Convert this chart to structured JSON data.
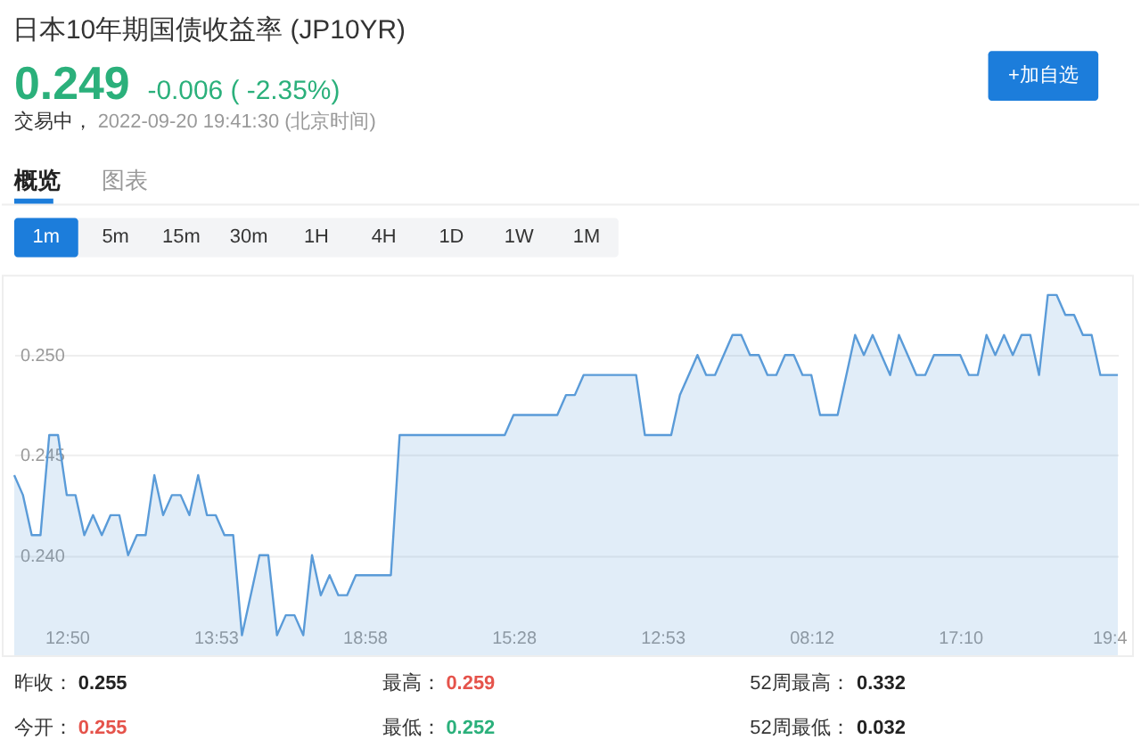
{
  "chart_data": {
    "type": "area",
    "title": "日本10年期国债收益率 (JP10YR)",
    "annotations": [
      "0.249",
      "-0.006 ( -2.35%)",
      "交易中，",
      "2022-09-20 19:41:30 (北京时间)",
      "+加自选",
      "概览",
      "图表",
      "1m",
      "5m",
      "15m",
      "30m",
      "1H",
      "4H",
      "1D",
      "1W",
      "1M",
      "昨收：",
      "0.255",
      "最高：",
      "0.259",
      "52周最高：",
      "0.332",
      "今开：",
      "0.255",
      "最低：",
      "0.252",
      "52周最低：",
      "0.032"
    ],
    "categories": [
      null,
      null,
      null,
      null,
      null,
      null,
      "12:50",
      null,
      null,
      null,
      null,
      null,
      null,
      null,
      null,
      null,
      null,
      null,
      null,
      null,
      null,
      null,
      null,
      "13:53",
      null,
      null,
      null,
      null,
      null,
      null,
      null,
      null,
      null,
      null,
      null,
      null,
      null,
      null,
      null,
      null,
      "18:58",
      null,
      null,
      null,
      null,
      null,
      null,
      null,
      null,
      null,
      null,
      null,
      null,
      null,
      null,
      null,
      null,
      "15:28",
      null,
      null,
      null,
      null,
      null,
      null,
      null,
      null,
      null,
      null,
      null,
      null,
      null,
      null,
      null,
      null,
      "12:53",
      null,
      null,
      null,
      null,
      null,
      null,
      null,
      null,
      null,
      null,
      null,
      null,
      null,
      null,
      null,
      null,
      "08:12",
      null,
      null,
      null,
      null,
      null,
      null,
      null,
      null,
      null,
      null,
      null,
      null,
      null,
      null,
      null,
      null,
      "17:10",
      null,
      null,
      null,
      null,
      null,
      null,
      null,
      null,
      null,
      null,
      null,
      null,
      null,
      null,
      null,
      null,
      "19:4",
      null
    ],
    "series": [
      {
        "color": "#5a9bd8",
        "values": [
          0.244,
          0.243,
          0.241,
          0.241,
          0.246,
          0.246,
          0.243,
          0.243,
          0.241,
          0.242,
          0.241,
          0.242,
          0.242,
          0.24,
          0.241,
          0.241,
          0.244,
          0.242,
          0.243,
          0.243,
          0.242,
          0.244,
          0.242,
          0.242,
          0.241,
          0.241,
          0.236,
          0.238,
          0.24,
          0.24,
          0.236,
          0.237,
          0.237,
          0.236,
          0.24,
          0.238,
          0.239,
          0.238,
          0.238,
          0.239,
          0.239,
          0.239,
          0.239,
          0.239,
          0.246,
          0.246,
          0.246,
          0.246,
          0.246,
          0.246,
          0.246,
          0.246,
          0.246,
          0.246,
          0.246,
          0.246,
          0.246,
          0.247,
          0.247,
          0.247,
          0.247,
          0.247,
          0.247,
          0.248,
          0.248,
          0.249,
          0.249,
          0.249,
          0.249,
          0.249,
          0.249,
          0.249,
          0.246,
          0.246,
          0.246,
          0.246,
          0.248,
          0.249,
          0.25,
          0.249,
          0.249,
          0.25,
          0.251,
          0.251,
          0.25,
          0.25,
          0.249,
          0.249,
          0.25,
          0.25,
          0.249,
          0.249,
          0.247,
          0.247,
          0.247,
          0.249,
          0.251,
          0.25,
          0.251,
          0.25,
          0.249,
          0.251,
          0.25,
          0.249,
          0.249,
          0.25,
          0.25,
          0.25,
          0.25,
          0.249,
          0.249,
          0.251,
          0.25,
          0.251,
          0.25,
          0.251,
          0.251,
          0.249,
          0.253,
          0.253,
          0.252,
          0.252,
          0.251,
          0.251,
          0.249,
          0.249,
          0.249
        ]
      }
    ],
    "ylim": [
      0.235,
      0.254
    ],
    "yticks": [
      {
        "value": 0.24,
        "label": "0.240"
      },
      0.245,
      {
        "value": 0.25,
        "label": "0.250"
      }
    ],
    "grid": "y"
  }
}
